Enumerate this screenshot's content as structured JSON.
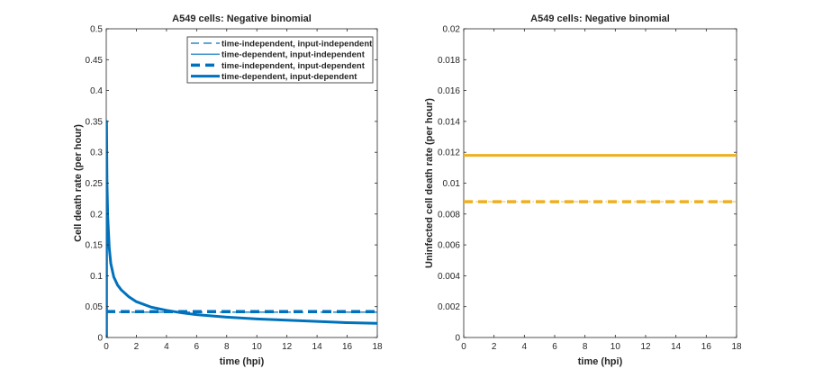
{
  "chart_data": [
    {
      "type": "line",
      "title": "A549 cells: Negative binomial",
      "xlabel": "time (hpi)",
      "ylabel": "Cell death rate (per hour)",
      "xlim": [
        0,
        18
      ],
      "ylim": [
        0,
        0.5
      ],
      "xticks": [
        0,
        2,
        4,
        6,
        8,
        10,
        12,
        14,
        16,
        18
      ],
      "yticks": [
        0,
        0.05,
        0.1,
        0.15,
        0.2,
        0.25,
        0.3,
        0.35,
        0.4,
        0.45,
        0.5
      ],
      "legend_position": "top-right",
      "grid": false,
      "series": [
        {
          "name": "time-independent, input-independent",
          "style": "dash-thin",
          "color": "#0072BD",
          "x": [
            0,
            18
          ],
          "y": [
            0.041,
            0.041
          ]
        },
        {
          "name": "time-dependent, input-independent",
          "style": "solid-thin",
          "color": "#0072BD",
          "x": [
            0.02,
            0.05,
            0.1,
            0.2,
            0.3,
            0.5,
            0.75,
            1,
            1.5,
            2,
            3,
            4,
            5,
            6,
            8,
            10,
            12,
            14,
            16,
            18
          ],
          "y": [
            0.35,
            0.25,
            0.195,
            0.145,
            0.12,
            0.098,
            0.085,
            0.077,
            0.066,
            0.058,
            0.049,
            0.044,
            0.04,
            0.037,
            0.033,
            0.03,
            0.028,
            0.026,
            0.024,
            0.023
          ]
        },
        {
          "name": "time-independent, input-dependent",
          "style": "dash-thick",
          "color": "#0072BD",
          "x": [
            0,
            18
          ],
          "y": [
            0.042,
            0.042
          ]
        },
        {
          "name": "time-dependent, input-dependent",
          "style": "solid-thick",
          "color": "#0072BD",
          "x": [
            0.02,
            0.05,
            0.1,
            0.2,
            0.3,
            0.5,
            0.75,
            1,
            1.5,
            2,
            3,
            4,
            5,
            6,
            8,
            10,
            12,
            14,
            16,
            18
          ],
          "y": [
            0.35,
            0.25,
            0.195,
            0.145,
            0.12,
            0.098,
            0.085,
            0.077,
            0.066,
            0.058,
            0.049,
            0.044,
            0.04,
            0.037,
            0.033,
            0.03,
            0.028,
            0.026,
            0.024,
            0.023
          ]
        }
      ]
    },
    {
      "type": "line",
      "title": "A549 cells: Negative binomial",
      "xlabel": "time (hpi)",
      "ylabel": "Uninfected cell death rate (per hour)",
      "xlim": [
        0,
        18
      ],
      "ylim": [
        0,
        0.02
      ],
      "xticks": [
        0,
        2,
        4,
        6,
        8,
        10,
        12,
        14,
        16,
        18
      ],
      "yticks": [
        0,
        0.002,
        0.004,
        0.006,
        0.008,
        0.01,
        0.012,
        0.014,
        0.016,
        0.018,
        0.02
      ],
      "grid": false,
      "series": [
        {
          "style": "solid-thick",
          "color": "#EDB120",
          "x": [
            0,
            18
          ],
          "y": [
            0.0118,
            0.0118
          ]
        },
        {
          "style": "dash-thick",
          "color": "#EDB120",
          "x": [
            0,
            18
          ],
          "y": [
            0.0088,
            0.0088
          ]
        },
        {
          "style": "dashdot-thin",
          "color": "#EDB120",
          "x": [
            0,
            18
          ],
          "y": [
            0.0088,
            0.0088
          ]
        }
      ]
    }
  ]
}
